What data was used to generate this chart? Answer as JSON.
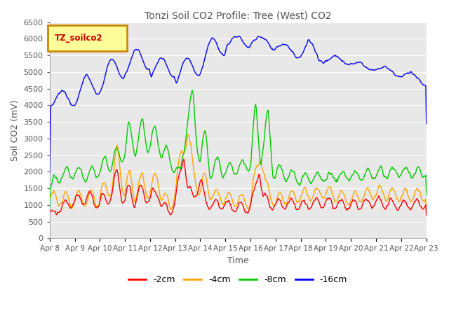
{
  "title": "Tonzi Soil CO2 Profile: Tree (West) CO2",
  "xlabel": "Time",
  "ylabel": "Soil CO2 (mV)",
  "legend_label": "TZ_soilco2",
  "ylim": [
    0,
    6500
  ],
  "yticks": [
    0,
    500,
    1000,
    1500,
    2000,
    2500,
    3000,
    3500,
    4000,
    4500,
    5000,
    5500,
    6000,
    6500
  ],
  "xtick_labels": [
    "Apr 8",
    "Apr 9",
    "Apr 10",
    "Apr 11",
    "Apr 12",
    "Apr 13",
    "Apr 14",
    "Apr 15",
    "Apr 16",
    "Apr 17",
    "Apr 18",
    "Apr 19",
    "Apr 20",
    "Apr 21",
    "Apr 22",
    "Apr 23"
  ],
  "colors": {
    "2cm": "#ff0000",
    "4cm": "#ffa500",
    "8cm": "#00cc00",
    "16cm": "#0000ff"
  },
  "background_color": "#e8e8e8",
  "grid_color": "#ffffff",
  "title_color": "#555555",
  "axis_label_color": "#555555",
  "tick_label_color": "#555555",
  "box_edge_color": "#cc8800",
  "box_face_color": "#ffff99",
  "legend_text_color": "#cc0000"
}
